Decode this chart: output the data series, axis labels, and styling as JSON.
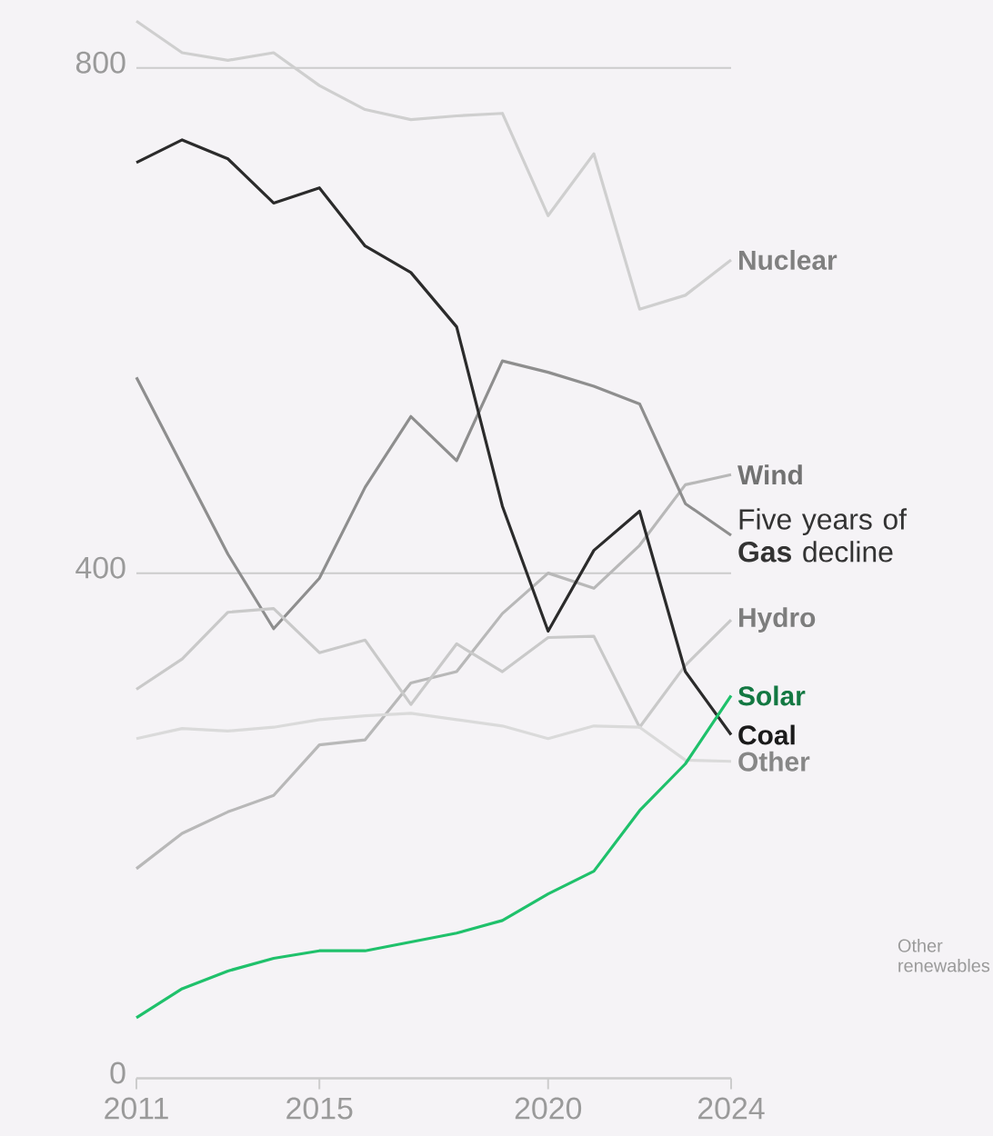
{
  "chart_data": {
    "type": "line",
    "x": [
      2011,
      2012,
      2013,
      2014,
      2015,
      2016,
      2017,
      2018,
      2019,
      2020,
      2021,
      2022,
      2023,
      2024
    ],
    "xlim": [
      2011,
      2024
    ],
    "xticks": [
      2011,
      2015,
      2020,
      2024
    ],
    "ylim": [
      0,
      850
    ],
    "yticks": [
      0,
      400,
      800
    ],
    "grid": "y",
    "series": [
      {
        "name": "Nuclear",
        "color": "#cfcfcf",
        "values": [
          837,
          812,
          806,
          812,
          786,
          767,
          759,
          762,
          764,
          683,
          732,
          609,
          620,
          648
        ]
      },
      {
        "name": "Wind",
        "color": "#b8b8b8",
        "values": [
          166,
          194,
          211,
          224,
          264,
          268,
          313,
          322,
          368,
          400,
          388,
          422,
          470,
          478
        ]
      },
      {
        "name": null,
        "color": "#8e8e8e",
        "values": [
          555,
          485,
          415,
          356,
          396,
          468,
          524,
          489,
          568,
          559,
          548,
          534,
          455,
          430
        ]
      },
      {
        "name": "Hydro",
        "color": "#c9c9c9",
        "values": [
          308,
          332,
          369,
          372,
          337,
          347,
          296,
          344,
          322,
          349,
          350,
          278,
          327,
          363
        ]
      },
      {
        "name": "Other",
        "color": "#dadada",
        "values": [
          269,
          277,
          275,
          278,
          284,
          287,
          289,
          284,
          279,
          269,
          279,
          278,
          252,
          251
        ]
      },
      {
        "name": "Coal",
        "color": "#2b2b2b",
        "values": [
          725,
          743,
          728,
          693,
          705,
          659,
          638,
          595,
          453,
          354,
          418,
          449,
          322,
          272
        ]
      },
      {
        "name": "Solar",
        "color": "#1fc16b",
        "values": [
          48,
          71,
          85,
          95,
          101,
          101,
          108,
          115,
          125,
          146,
          164,
          212,
          249,
          303
        ]
      }
    ],
    "annotations": [
      {
        "text": "Five years of **Gas** decline",
        "x": 2024,
        "y": 430
      },
      "Other renewables"
    ]
  }
}
